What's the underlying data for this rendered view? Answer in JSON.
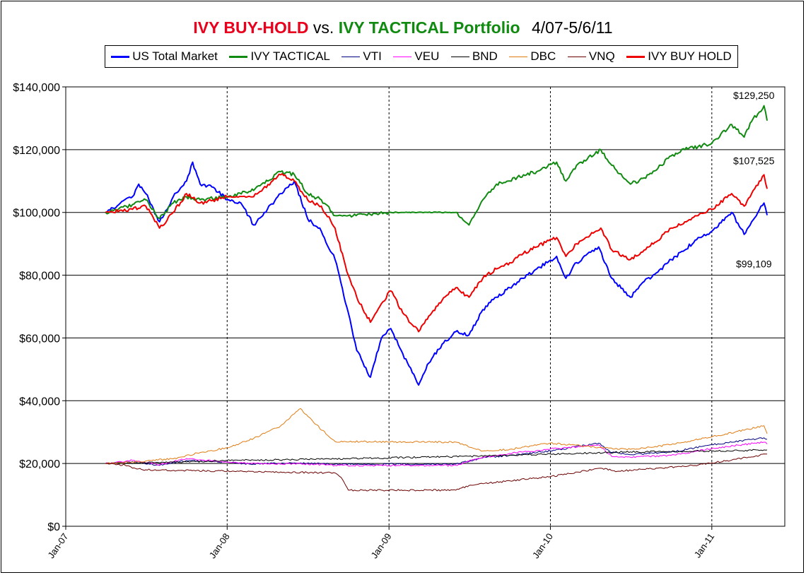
{
  "title": {
    "part1": "IVY BUY-HOLD",
    "part2": "vs.",
    "part3": "IVY TACTICAL Portfolio",
    "part4": "4/07-5/6/11"
  },
  "chart_data": {
    "type": "line",
    "x_axis": {
      "ticks": [
        "Jan-07",
        "Jan-08",
        "Jan-09",
        "Jan-10",
        "Jan-11"
      ],
      "range": [
        "2007-01-01",
        "2011-06-15"
      ]
    },
    "y_axis": {
      "ticks": [
        "$0",
        "$20,000",
        "$40,000",
        "$60,000",
        "$80,000",
        "$100,000",
        "$120,000",
        "$140,000"
      ],
      "range": [
        0,
        140000
      ]
    },
    "grid": {
      "horizontal": "solid",
      "vertical": "dashed"
    },
    "legend_position": "top",
    "series": [
      {
        "name": "US Total Market",
        "color": "#0000ff",
        "width": 2,
        "points": [
          [
            "2007-04-01",
            100000
          ],
          [
            "2007-05-01",
            102500
          ],
          [
            "2007-06-01",
            105000
          ],
          [
            "2007-06-15",
            109000
          ],
          [
            "2007-07-01",
            106000
          ],
          [
            "2007-08-01",
            97000
          ],
          [
            "2007-09-01",
            105000
          ],
          [
            "2007-10-01",
            110000
          ],
          [
            "2007-10-15",
            116000
          ],
          [
            "2007-11-01",
            109000
          ],
          [
            "2007-12-01",
            108000
          ],
          [
            "2008-01-01",
            104000
          ],
          [
            "2008-02-01",
            103000
          ],
          [
            "2008-03-01",
            96000
          ],
          [
            "2008-04-01",
            101000
          ],
          [
            "2008-05-01",
            106000
          ],
          [
            "2008-06-01",
            110000
          ],
          [
            "2008-07-01",
            98000
          ],
          [
            "2008-08-01",
            94000
          ],
          [
            "2008-09-01",
            85000
          ],
          [
            "2008-10-01",
            68000
          ],
          [
            "2008-10-20",
            56000
          ],
          [
            "2008-11-20",
            47500
          ],
          [
            "2008-12-15",
            60000
          ],
          [
            "2009-01-05",
            63000
          ],
          [
            "2009-02-01",
            55000
          ],
          [
            "2009-03-09",
            45000
          ],
          [
            "2009-04-01",
            52000
          ],
          [
            "2009-05-01",
            58000
          ],
          [
            "2009-06-01",
            62000
          ],
          [
            "2009-07-01",
            61000
          ],
          [
            "2009-08-01",
            69000
          ],
          [
            "2009-09-01",
            73000
          ],
          [
            "2009-10-01",
            76000
          ],
          [
            "2009-11-01",
            79000
          ],
          [
            "2009-12-01",
            82000
          ],
          [
            "2010-01-15",
            86000
          ],
          [
            "2010-02-05",
            79000
          ],
          [
            "2010-03-01",
            84000
          ],
          [
            "2010-04-20",
            89000
          ],
          [
            "2010-05-20",
            79000
          ],
          [
            "2010-07-01",
            73000
          ],
          [
            "2010-08-01",
            78000
          ],
          [
            "2010-09-01",
            81000
          ],
          [
            "2010-10-01",
            85000
          ],
          [
            "2010-11-01",
            88000
          ],
          [
            "2010-12-01",
            92000
          ],
          [
            "2011-01-01",
            94000
          ],
          [
            "2011-02-15",
            100000
          ],
          [
            "2011-03-15",
            93000
          ],
          [
            "2011-04-01",
            97000
          ],
          [
            "2011-04-29",
            103000
          ],
          [
            "2011-05-06",
            99109
          ]
        ]
      },
      {
        "name": "IVY TACTICAL",
        "color": "#118a11",
        "width": 2,
        "points": [
          [
            "2007-04-01",
            100000
          ],
          [
            "2007-06-01",
            102500
          ],
          [
            "2007-07-01",
            104000
          ],
          [
            "2007-08-01",
            98000
          ],
          [
            "2007-09-01",
            103000
          ],
          [
            "2007-10-01",
            105000
          ],
          [
            "2007-11-01",
            104000
          ],
          [
            "2008-01-01",
            105000
          ],
          [
            "2008-03-01",
            107000
          ],
          [
            "2008-05-01",
            113000
          ],
          [
            "2008-06-01",
            112000
          ],
          [
            "2008-07-01",
            106000
          ],
          [
            "2008-08-01",
            104000
          ],
          [
            "2008-09-01",
            99000
          ],
          [
            "2008-10-01",
            99000
          ],
          [
            "2009-01-01",
            100000
          ],
          [
            "2009-06-01",
            100000
          ],
          [
            "2009-07-01",
            96000
          ],
          [
            "2009-08-01",
            104000
          ],
          [
            "2009-09-01",
            109000
          ],
          [
            "2009-10-01",
            110000
          ],
          [
            "2009-11-01",
            112000
          ],
          [
            "2009-12-01",
            113000
          ],
          [
            "2010-01-15",
            116000
          ],
          [
            "2010-02-05",
            110000
          ],
          [
            "2010-03-01",
            115000
          ],
          [
            "2010-04-25",
            120000
          ],
          [
            "2010-05-20",
            115000
          ],
          [
            "2010-07-01",
            109000
          ],
          [
            "2010-08-01",
            111000
          ],
          [
            "2010-09-01",
            114000
          ],
          [
            "2010-10-01",
            118000
          ],
          [
            "2010-11-01",
            120000
          ],
          [
            "2010-12-01",
            121000
          ],
          [
            "2011-01-01",
            122000
          ],
          [
            "2011-02-15",
            128000
          ],
          [
            "2011-03-15",
            124000
          ],
          [
            "2011-04-01",
            129000
          ],
          [
            "2011-04-29",
            134000
          ],
          [
            "2011-05-06",
            129250
          ]
        ]
      },
      {
        "name": "VTI",
        "color": "#000080",
        "width": 1,
        "points": [
          [
            "2007-04-01",
            20000
          ],
          [
            "2007-06-01",
            20600
          ],
          [
            "2007-08-01",
            19400
          ],
          [
            "2007-10-01",
            21000
          ],
          [
            "2008-01-01",
            20400
          ],
          [
            "2008-03-01",
            19800
          ],
          [
            "2008-06-01",
            20200
          ],
          [
            "2008-09-01",
            19800
          ],
          [
            "2009-01-01",
            19800
          ],
          [
            "2009-06-01",
            19800
          ],
          [
            "2009-08-01",
            21800
          ],
          [
            "2009-10-01",
            22600
          ],
          [
            "2010-01-01",
            24000
          ],
          [
            "2010-04-20",
            26500
          ],
          [
            "2010-05-20",
            23500
          ],
          [
            "2010-07-01",
            22800
          ],
          [
            "2010-10-01",
            23600
          ],
          [
            "2011-01-01",
            26000
          ],
          [
            "2011-04-29",
            28200
          ],
          [
            "2011-05-06",
            27700
          ]
        ]
      },
      {
        "name": "VEU",
        "color": "#ff00ff",
        "width": 1,
        "points": [
          [
            "2007-04-01",
            20000
          ],
          [
            "2007-06-01",
            21000
          ],
          [
            "2007-08-01",
            19600
          ],
          [
            "2007-10-01",
            21600
          ],
          [
            "2008-01-01",
            20400
          ],
          [
            "2008-04-01",
            19800
          ],
          [
            "2008-06-01",
            20000
          ],
          [
            "2008-09-01",
            19400
          ],
          [
            "2009-01-01",
            19400
          ],
          [
            "2009-06-01",
            19400
          ],
          [
            "2009-08-01",
            22000
          ],
          [
            "2009-10-01",
            23200
          ],
          [
            "2010-01-01",
            24600
          ],
          [
            "2010-04-20",
            26000
          ],
          [
            "2010-05-20",
            22200
          ],
          [
            "2010-07-01",
            22000
          ],
          [
            "2010-10-01",
            22600
          ],
          [
            "2011-01-01",
            24800
          ],
          [
            "2011-04-29",
            26800
          ],
          [
            "2011-05-06",
            26200
          ]
        ]
      },
      {
        "name": "BND",
        "color": "#000000",
        "width": 1,
        "points": [
          [
            "2007-04-01",
            20000
          ],
          [
            "2007-10-01",
            20500
          ],
          [
            "2008-01-01",
            21000
          ],
          [
            "2008-07-01",
            21300
          ],
          [
            "2009-01-01",
            21800
          ],
          [
            "2009-07-01",
            22300
          ],
          [
            "2010-01-01",
            23000
          ],
          [
            "2010-07-01",
            23700
          ],
          [
            "2011-01-01",
            24000
          ],
          [
            "2011-05-06",
            24300
          ]
        ]
      },
      {
        "name": "DBC",
        "color": "#e07b10",
        "width": 1,
        "points": [
          [
            "2007-04-01",
            20000
          ],
          [
            "2007-07-01",
            20800
          ],
          [
            "2007-09-01",
            21500
          ],
          [
            "2007-11-01",
            23500
          ],
          [
            "2008-01-01",
            25000
          ],
          [
            "2008-03-01",
            28000
          ],
          [
            "2008-05-01",
            32000
          ],
          [
            "2008-06-15",
            37500
          ],
          [
            "2008-07-15",
            33000
          ],
          [
            "2008-09-01",
            27000
          ],
          [
            "2009-06-01",
            26800
          ],
          [
            "2009-08-01",
            24000
          ],
          [
            "2009-10-01",
            24500
          ],
          [
            "2010-01-01",
            26500
          ],
          [
            "2010-05-01",
            25000
          ],
          [
            "2010-07-01",
            24500
          ],
          [
            "2010-10-01",
            26000
          ],
          [
            "2011-01-01",
            28500
          ],
          [
            "2011-04-29",
            32000
          ],
          [
            "2011-05-06",
            29500
          ]
        ]
      },
      {
        "name": "VNQ",
        "color": "#6b0000",
        "width": 1,
        "points": [
          [
            "2007-04-01",
            20000
          ],
          [
            "2007-05-15",
            19500
          ],
          [
            "2007-06-01",
            18500
          ],
          [
            "2007-07-01",
            18000
          ],
          [
            "2008-09-01",
            17000
          ],
          [
            "2008-09-15",
            15500
          ],
          [
            "2008-10-01",
            11500
          ],
          [
            "2009-06-01",
            11500
          ],
          [
            "2009-07-01",
            13000
          ],
          [
            "2009-10-01",
            14500
          ],
          [
            "2010-01-01",
            15800
          ],
          [
            "2010-04-25",
            18500
          ],
          [
            "2010-06-01",
            17500
          ],
          [
            "2010-09-01",
            18500
          ],
          [
            "2010-12-01",
            19500
          ],
          [
            "2011-02-01",
            20800
          ],
          [
            "2011-05-06",
            23000
          ]
        ]
      },
      {
        "name": "IVY BUY HOLD",
        "color": "#ee0000",
        "width": 2,
        "points": [
          [
            "2007-04-01",
            100000
          ],
          [
            "2007-06-01",
            101000
          ],
          [
            "2007-07-01",
            102000
          ],
          [
            "2007-08-01",
            95000
          ],
          [
            "2007-09-01",
            100000
          ],
          [
            "2007-10-01",
            106000
          ],
          [
            "2007-11-01",
            103000
          ],
          [
            "2008-01-01",
            105000
          ],
          [
            "2008-03-01",
            105000
          ],
          [
            "2008-05-01",
            112000
          ],
          [
            "2008-06-01",
            110000
          ],
          [
            "2008-07-01",
            104000
          ],
          [
            "2008-08-01",
            102000
          ],
          [
            "2008-09-01",
            95000
          ],
          [
            "2008-10-01",
            80000
          ],
          [
            "2008-10-20",
            73000
          ],
          [
            "2008-11-20",
            65000
          ],
          [
            "2008-12-15",
            71000
          ],
          [
            "2009-01-05",
            75000
          ],
          [
            "2009-02-01",
            68000
          ],
          [
            "2009-03-09",
            62000
          ],
          [
            "2009-04-01",
            67000
          ],
          [
            "2009-05-01",
            72000
          ],
          [
            "2009-06-01",
            76000
          ],
          [
            "2009-07-01",
            73000
          ],
          [
            "2009-08-01",
            79000
          ],
          [
            "2009-09-01",
            82000
          ],
          [
            "2009-10-01",
            84000
          ],
          [
            "2009-11-01",
            87000
          ],
          [
            "2009-12-01",
            89000
          ],
          [
            "2010-01-15",
            92000
          ],
          [
            "2010-02-05",
            86000
          ],
          [
            "2010-03-01",
            90000
          ],
          [
            "2010-04-25",
            95000
          ],
          [
            "2010-05-20",
            88000
          ],
          [
            "2010-07-01",
            85000
          ],
          [
            "2010-08-01",
            88000
          ],
          [
            "2010-09-01",
            91000
          ],
          [
            "2010-10-01",
            95000
          ],
          [
            "2010-11-01",
            97000
          ],
          [
            "2010-12-01",
            99000
          ],
          [
            "2011-01-01",
            101000
          ],
          [
            "2011-02-15",
            106000
          ],
          [
            "2011-03-15",
            102000
          ],
          [
            "2011-04-01",
            106000
          ],
          [
            "2011-04-29",
            112000
          ],
          [
            "2011-05-06",
            107525
          ]
        ]
      }
    ],
    "annotations": [
      {
        "text": "$129,250",
        "series": "IVY TACTICAL"
      },
      {
        "text": "$107,525",
        "series": "IVY BUY HOLD"
      },
      {
        "text": "$99,109",
        "series": "US Total Market"
      }
    ]
  }
}
